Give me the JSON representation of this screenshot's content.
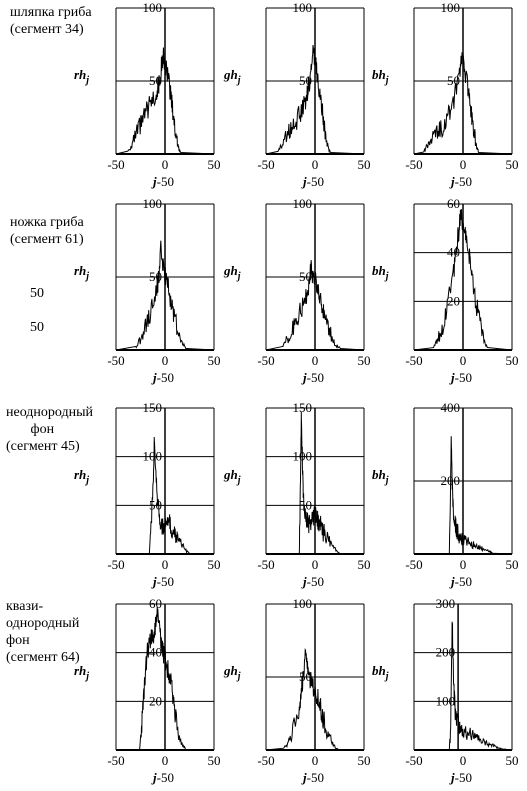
{
  "row_labels": [
    "шляпка гриба\n(сегмент 34)",
    "ножка гриба\n(сегмент 61)",
    "неоднородный\n       фон\n(сегмент 45)",
    "квази-\nоднородный\nфон\n(сегмент 64)"
  ],
  "stray_labels": [
    "50",
    "50"
  ],
  "chart_data": [
    {
      "type": "line",
      "row": 0,
      "ylabel_main": "rh",
      "ylabel_sub": "j",
      "xlabel_main": "j",
      "xlabel_rest": "-50",
      "xlim": [
        -50,
        50
      ],
      "ylim": [
        0,
        100
      ],
      "xticks": [
        "-50",
        "0",
        "50"
      ],
      "yticks": [
        "50",
        "100"
      ],
      "hlines": [
        50
      ],
      "vline": 0,
      "series": [
        {
          "x": [
            -38,
            -34,
            -30,
            -26,
            -22,
            -18,
            -14,
            -10,
            -8,
            -6,
            -4,
            -2,
            0,
            2,
            4,
            6,
            8,
            10,
            12,
            14,
            16
          ],
          "y": [
            2,
            6,
            12,
            18,
            24,
            30,
            36,
            40,
            44,
            48,
            58,
            68,
            62,
            55,
            48,
            40,
            30,
            18,
            10,
            4,
            1
          ]
        }
      ]
    },
    {
      "type": "line",
      "row": 0,
      "ylabel_main": "gh",
      "ylabel_sub": "j",
      "xlabel_main": "j",
      "xlabel_rest": "-50",
      "xlim": [
        -50,
        50
      ],
      "ylim": [
        0,
        100
      ],
      "xticks": [
        "-50",
        "0",
        "50"
      ],
      "yticks": [
        "50",
        "100"
      ],
      "hlines": [
        50
      ],
      "vline": 0,
      "series": [
        {
          "x": [
            -38,
            -34,
            -30,
            -26,
            -22,
            -18,
            -14,
            -10,
            -8,
            -6,
            -4,
            -2,
            0,
            2,
            4,
            6,
            8,
            10,
            12,
            14,
            16
          ],
          "y": [
            2,
            6,
            12,
            16,
            20,
            24,
            30,
            36,
            42,
            48,
            58,
            68,
            64,
            56,
            46,
            36,
            26,
            16,
            8,
            3,
            1
          ]
        }
      ]
    },
    {
      "type": "line",
      "row": 0,
      "ylabel_main": "bh",
      "ylabel_sub": "j",
      "xlabel_main": "j",
      "xlabel_rest": "-50",
      "xlim": [
        -50,
        50
      ],
      "ylim": [
        0,
        100
      ],
      "xticks": [
        "-50",
        "0",
        "50"
      ],
      "yticks": [
        "50",
        "100"
      ],
      "hlines": [
        50
      ],
      "vline": 0,
      "series": [
        {
          "x": [
            -40,
            -36,
            -32,
            -28,
            -24,
            -20,
            -16,
            -12,
            -8,
            -4,
            -2,
            0,
            2,
            4,
            6,
            8,
            10,
            12,
            14,
            16
          ],
          "y": [
            2,
            6,
            10,
            14,
            16,
            20,
            24,
            32,
            40,
            52,
            62,
            66,
            58,
            50,
            40,
            30,
            20,
            12,
            5,
            1
          ]
        }
      ]
    },
    {
      "type": "line",
      "row": 1,
      "ylabel_main": "rh",
      "ylabel_sub": "j",
      "xlabel_main": "j",
      "xlabel_rest": "-50",
      "xlim": [
        -50,
        50
      ],
      "ylim": [
        0,
        100
      ],
      "xticks": [
        "-50",
        "0",
        "50"
      ],
      "yticks": [
        "50",
        "100"
      ],
      "hlines": [
        50
      ],
      "vline": 0,
      "series": [
        {
          "x": [
            -30,
            -26,
            -22,
            -18,
            -14,
            -10,
            -8,
            -6,
            -4,
            -2,
            0,
            2,
            4,
            6,
            8,
            10,
            14,
            18,
            22
          ],
          "y": [
            2,
            6,
            12,
            20,
            28,
            36,
            44,
            50,
            72,
            56,
            52,
            46,
            40,
            34,
            28,
            22,
            12,
            4,
            1
          ]
        }
      ]
    },
    {
      "type": "line",
      "row": 1,
      "ylabel_main": "gh",
      "ylabel_sub": "j",
      "xlabel_main": "j",
      "xlabel_rest": "-50",
      "xlim": [
        -50,
        50
      ],
      "ylim": [
        0,
        100
      ],
      "xticks": [
        "-50",
        "0",
        "50"
      ],
      "yticks": [
        "50",
        "100"
      ],
      "hlines": [
        50
      ],
      "vline": 0,
      "series": [
        {
          "x": [
            -34,
            -30,
            -26,
            -22,
            -18,
            -14,
            -10,
            -8,
            -6,
            -4,
            -2,
            0,
            2,
            4,
            6,
            8,
            10,
            14,
            18,
            22,
            26
          ],
          "y": [
            2,
            6,
            10,
            16,
            22,
            28,
            34,
            40,
            46,
            58,
            50,
            48,
            44,
            40,
            34,
            28,
            22,
            14,
            8,
            3,
            1
          ]
        }
      ]
    },
    {
      "type": "line",
      "row": 1,
      "ylabel_main": "bh",
      "ylabel_sub": "j",
      "xlabel_main": "j",
      "xlabel_rest": "-50",
      "xlim": [
        -50,
        50
      ],
      "ylim": [
        0,
        60
      ],
      "xticks": [
        "-50",
        "0",
        "50"
      ],
      "yticks": [
        "20",
        "40",
        "60"
      ],
      "hlines": [
        20,
        40
      ],
      "vline": 0,
      "series": [
        {
          "x": [
            -30,
            -26,
            -22,
            -18,
            -14,
            -10,
            -8,
            -6,
            -4,
            -2,
            0,
            2,
            4,
            6,
            8,
            10,
            14,
            18,
            22,
            26
          ],
          "y": [
            1,
            4,
            8,
            14,
            22,
            30,
            38,
            44,
            50,
            56,
            52,
            48,
            44,
            40,
            34,
            28,
            18,
            10,
            4,
            1
          ]
        }
      ]
    },
    {
      "type": "line",
      "row": 2,
      "ylabel_main": "rh",
      "ylabel_sub": "j",
      "xlabel_main": "j",
      "xlabel_rest": "-50",
      "xlim": [
        -50,
        50
      ],
      "ylim": [
        0,
        150
      ],
      "xticks": [
        "-50",
        "0",
        "50"
      ],
      "yticks": [
        "50",
        "100",
        "150"
      ],
      "hlines": [
        50,
        100
      ],
      "vline": 0,
      "series": [
        {
          "x": [
            -16,
            -14,
            -12,
            -11,
            -10,
            -8,
            -6,
            -4,
            -2,
            0,
            2,
            4,
            6,
            8,
            10,
            12,
            14,
            18,
            22,
            26
          ],
          "y": [
            0,
            30,
            80,
            115,
            90,
            60,
            40,
            32,
            28,
            30,
            34,
            32,
            28,
            24,
            20,
            18,
            14,
            8,
            3,
            0
          ]
        }
      ]
    },
    {
      "type": "line",
      "row": 2,
      "ylabel_main": "gh",
      "ylabel_sub": "j",
      "xlabel_main": "j",
      "xlabel_rest": "-50",
      "xlim": [
        -50,
        50
      ],
      "ylim": [
        0,
        150
      ],
      "xticks": [
        "-50",
        "0",
        "50"
      ],
      "yticks": [
        "50",
        "100",
        "150"
      ],
      "hlines": [
        50,
        100
      ],
      "vline": 0,
      "series": [
        {
          "x": [
            -16,
            -15,
            -14,
            -13,
            -12,
            -10,
            -8,
            -6,
            -4,
            -2,
            0,
            2,
            4,
            6,
            8,
            10,
            14,
            18,
            22,
            26
          ],
          "y": [
            0,
            60,
            140,
            100,
            60,
            40,
            34,
            30,
            32,
            36,
            40,
            36,
            32,
            28,
            24,
            20,
            14,
            8,
            3,
            0
          ]
        }
      ]
    },
    {
      "type": "line",
      "row": 2,
      "ylabel_main": "bh",
      "ylabel_sub": "j",
      "xlabel_main": "j",
      "xlabel_rest": "-50",
      "xlim": [
        -50,
        50
      ],
      "ylim": [
        0,
        400
      ],
      "xticks": [
        "-50",
        "0",
        "50"
      ],
      "yticks": [
        "200",
        "400"
      ],
      "hlines": [
        200
      ],
      "vline": 0,
      "series": [
        {
          "x": [
            -14,
            -13,
            -12,
            -11,
            -10,
            -8,
            -6,
            -4,
            -2,
            0,
            4,
            8,
            12,
            16,
            20,
            24,
            28,
            30
          ],
          "y": [
            0,
            120,
            320,
            200,
            120,
            80,
            60,
            50,
            44,
            40,
            34,
            28,
            22,
            18,
            14,
            10,
            6,
            2
          ]
        }
      ]
    },
    {
      "type": "line",
      "row": 3,
      "ylabel_main": "rh",
      "ylabel_sub": "j",
      "xlabel_main": "j",
      "xlabel_rest": "-50",
      "xlim": [
        -50,
        50
      ],
      "ylim": [
        0,
        60
      ],
      "xticks": [
        "-50",
        "0",
        "50"
      ],
      "yticks": [
        "20",
        "40",
        "60"
      ],
      "hlines": [
        20,
        40
      ],
      "vline": 0,
      "series": [
        {
          "x": [
            -26,
            -24,
            -22,
            -20,
            -18,
            -16,
            -14,
            -12,
            -10,
            -8,
            -6,
            -4,
            -2,
            0,
            2,
            4,
            6,
            8,
            10,
            12,
            14,
            18,
            22
          ],
          "y": [
            0,
            8,
            20,
            32,
            40,
            44,
            46,
            48,
            50,
            56,
            50,
            44,
            40,
            38,
            34,
            32,
            28,
            22,
            16,
            10,
            6,
            2,
            0
          ]
        }
      ]
    },
    {
      "type": "line",
      "row": 3,
      "ylabel_main": "gh",
      "ylabel_sub": "j",
      "xlabel_main": "j",
      "xlabel_rest": "-50",
      "xlim": [
        -50,
        50
      ],
      "ylim": [
        0,
        100
      ],
      "xticks": [
        "-50",
        "0",
        "50"
      ],
      "yticks": [
        "50",
        "100"
      ],
      "hlines": [
        50
      ],
      "vline": 0,
      "series": [
        {
          "x": [
            -32,
            -28,
            -24,
            -20,
            -16,
            -14,
            -12,
            -10,
            -8,
            -6,
            -4,
            -2,
            0,
            2,
            4,
            6,
            8,
            10,
            14,
            18,
            22,
            26
          ],
          "y": [
            1,
            4,
            10,
            18,
            28,
            40,
            52,
            66,
            56,
            50,
            46,
            42,
            40,
            38,
            34,
            28,
            22,
            18,
            10,
            4,
            1,
            0
          ]
        }
      ]
    },
    {
      "type": "line",
      "row": 3,
      "ylabel_main": "bh",
      "ylabel_sub": "j",
      "xlabel_main": "j",
      "xlabel_rest": "-50",
      "xlim": [
        -50,
        50
      ],
      "ylim": [
        0,
        300
      ],
      "xticks": [
        "-50",
        "0",
        "50"
      ],
      "yticks": [
        "100",
        "200",
        "300"
      ],
      "hlines": [
        100,
        200
      ],
      "vline": -5,
      "series": [
        {
          "x": [
            -14,
            -13,
            -12,
            -11,
            -10,
            -9,
            -8,
            -6,
            -4,
            -2,
            0,
            4,
            8,
            12,
            16,
            20,
            24,
            28,
            32,
            36,
            40,
            44,
            48
          ],
          "y": [
            0,
            30,
            120,
            270,
            180,
            110,
            80,
            60,
            52,
            48,
            44,
            38,
            32,
            26,
            22,
            18,
            14,
            10,
            8,
            5,
            3,
            1,
            0
          ]
        }
      ]
    }
  ]
}
